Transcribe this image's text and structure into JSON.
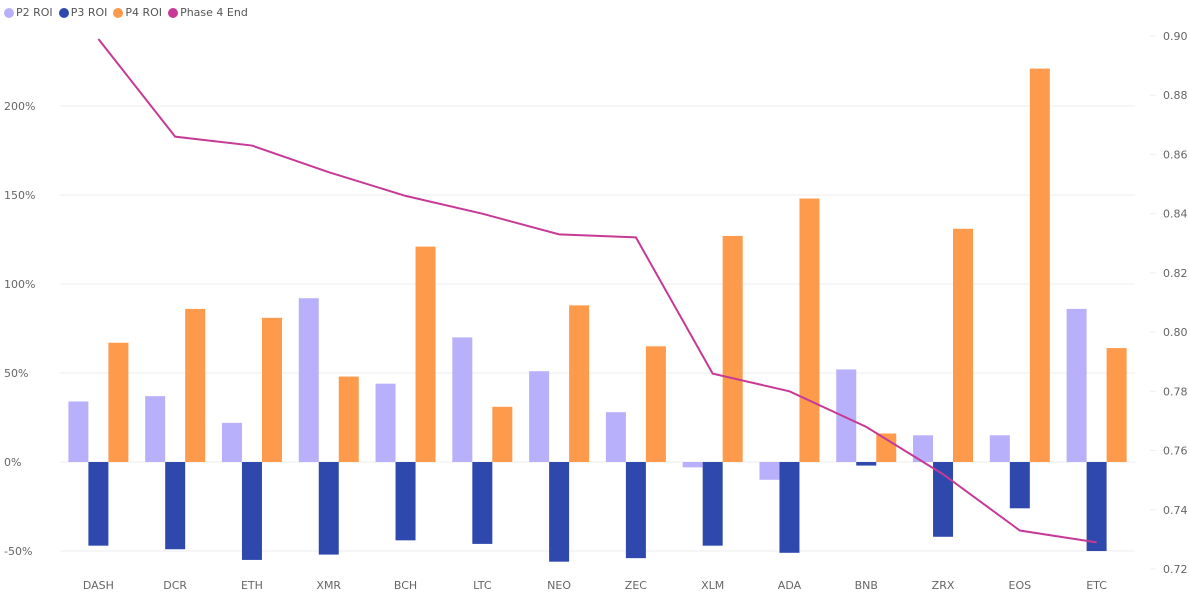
{
  "chart_data": {
    "type": "bar",
    "title": "",
    "legend": "top-left",
    "categories": [
      "DASH",
      "DCR",
      "ETH",
      "XMR",
      "BCH",
      "LTC",
      "NEO",
      "ZEC",
      "XLM",
      "ADA",
      "BNB",
      "ZRX",
      "EOS",
      "ETC"
    ],
    "series": [
      {
        "name": "P2 ROI",
        "type": "bar",
        "axis": "left",
        "color": "#b8b0fb",
        "values": [
          34,
          37,
          22,
          92,
          44,
          70,
          51,
          28,
          -3,
          -10,
          52,
          15,
          15,
          86
        ]
      },
      {
        "name": "P3 ROI",
        "type": "bar",
        "axis": "left",
        "color": "#2f48ad",
        "values": [
          -47,
          -49,
          -55,
          -52,
          -44,
          -46,
          -56,
          -54,
          -47,
          -51,
          -2,
          -42,
          -26,
          -50
        ]
      },
      {
        "name": "P4 ROI",
        "type": "bar",
        "axis": "left",
        "color": "#fd9a4b",
        "values": [
          67,
          86,
          81,
          48,
          121,
          31,
          88,
          65,
          127,
          148,
          16,
          131,
          221,
          64
        ]
      },
      {
        "name": "Phase 4 End",
        "type": "line",
        "axis": "right",
        "color": "#c63a96",
        "values": [
          0.899,
          0.866,
          0.863,
          0.854,
          0.846,
          0.84,
          0.833,
          0.832,
          0.786,
          0.78,
          0.768,
          0.752,
          0.733,
          0.729
        ]
      }
    ],
    "y_left": {
      "ticks": [
        -50,
        0,
        50,
        100,
        150,
        200
      ],
      "tick_labels": [
        "-50%",
        "0%",
        "50%",
        "100%",
        "150%",
        "200%"
      ],
      "ylim": [
        -60.1,
        239.3
      ]
    },
    "y_right": {
      "ticks": [
        0.72,
        0.74,
        0.76,
        0.78,
        0.8,
        0.82,
        0.84,
        0.86,
        0.88,
        0.9
      ],
      "tick_labels": [
        "0.72",
        "0.74",
        "0.76",
        "0.78",
        "0.80",
        "0.82",
        "0.84",
        "0.86",
        "0.88",
        "0.90"
      ],
      "ylim": [
        0.72,
        0.9
      ]
    },
    "grid": true,
    "xlabel": "",
    "ylabel": ""
  }
}
